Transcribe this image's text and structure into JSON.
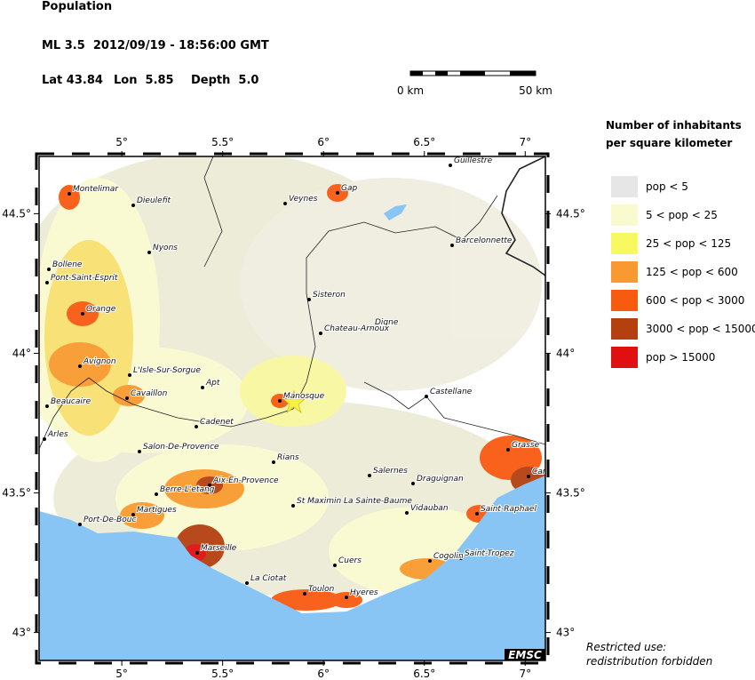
{
  "header": {
    "title": "Population",
    "event": "ML 3.5  2012/09/19 - 18:56:00 GMT",
    "lat": "Lat 43.84",
    "lon": "Lon  5.85",
    "depth": "Depth  5.0"
  },
  "scale_bar": {
    "start": "0 km",
    "end": "50 km"
  },
  "axes": {
    "xticks": [
      {
        "value": 5,
        "label": "5°"
      },
      {
        "value": 5.5,
        "label": "5.5°"
      },
      {
        "value": 6,
        "label": "6°"
      },
      {
        "value": 6.5,
        "label": "6.5°"
      },
      {
        "value": 7,
        "label": "7°"
      }
    ],
    "yticks": [
      {
        "value": 44.5,
        "label": "44.5°"
      },
      {
        "value": 44,
        "label": "44°"
      },
      {
        "value": 43.5,
        "label": "43.5°"
      },
      {
        "value": 43,
        "label": "43°"
      }
    ]
  },
  "legend": {
    "title": [
      "Number of inhabitants",
      "per square kilometer"
    ],
    "items": [
      {
        "label": "pop < 5",
        "color": "#e6e6e6"
      },
      {
        "label": "5 < pop < 25",
        "color": "#fafad0"
      },
      {
        "label": "25 < pop < 125",
        "color": "#f8f860"
      },
      {
        "label": "125 < pop < 600",
        "color": "#f89a30"
      },
      {
        "label": "600 < pop < 3000",
        "color": "#f85a10"
      },
      {
        "label": "3000 < pop < 15000",
        "color": "#b44010"
      },
      {
        "label": "pop > 15000",
        "color": "#e01010"
      }
    ]
  },
  "places": [
    "Montelimar",
    "Dieulefit",
    "Nyons",
    "Bollene",
    "Pont-Saint-Esprit",
    "Orange",
    "Avignon",
    "L'Isle-Sur-Sorgue",
    "Apt",
    "Cavaillon",
    "Beaucaire",
    "Arles",
    "Cadenet",
    "Salon-De-Provence",
    "Rians",
    "Aix-En-Provence",
    "Berre-L'etang",
    "Martigues",
    "Port-De-Bouc",
    "Marseille",
    "La Ciotat",
    "Toulon",
    "Hyeres",
    "Cuers",
    "St Maximin La Sainte-Baume",
    "Salernes",
    "Draguignan",
    "Vidauban",
    "Saint-Raphael",
    "Grasse",
    "Cannes",
    "Saint-Tropez",
    "Cogolin",
    "Castellane",
    "Manosque",
    "Digne",
    "Chateau-Arnoux",
    "Sisteron",
    "Veynes",
    "Gap",
    "Guillestre",
    "Barcelonnette"
  ],
  "logo": "EMSC",
  "notice": [
    "Restricted use:",
    "redistribution forbidden"
  ]
}
